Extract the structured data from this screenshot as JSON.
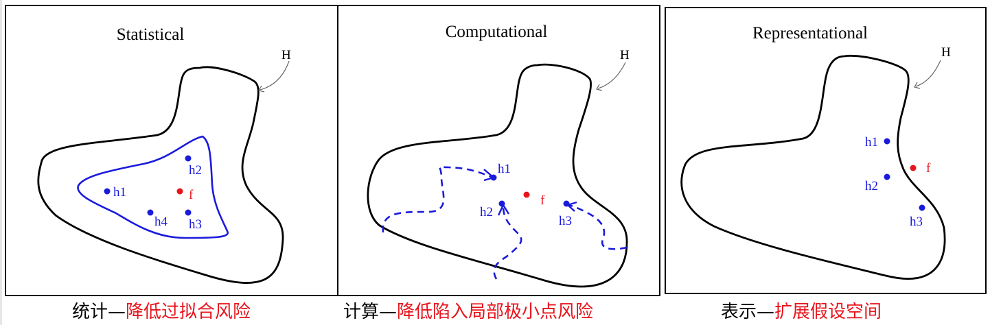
{
  "colors": {
    "hypothesis_point": "#1a1adc",
    "target_point": "#e8141c",
    "outline": "#000000",
    "arrow": "#666666"
  },
  "panels": {
    "statistical": {
      "title": "Statistical",
      "space_label": "H",
      "points": [
        {
          "label": "h1"
        },
        {
          "label": "h2"
        },
        {
          "label": "h3"
        },
        {
          "label": "h4"
        }
      ],
      "target": {
        "label": "f"
      }
    },
    "computational": {
      "title": "Computational",
      "space_label": "H",
      "points": [
        {
          "label": "h1"
        },
        {
          "label": "h2"
        },
        {
          "label": "h3"
        }
      ],
      "target": {
        "label": "f"
      }
    },
    "representational": {
      "title": "Representational",
      "space_label": "H",
      "points": [
        {
          "label": "h1"
        },
        {
          "label": "h2"
        },
        {
          "label": "h3"
        }
      ],
      "target": {
        "label": "f"
      }
    }
  },
  "captions": {
    "statistical": {
      "prefix": "统计—",
      "highlight": "降低过拟合风险"
    },
    "computational": {
      "prefix": "计算—",
      "highlight": "降低陷入局部极小点风险"
    },
    "representational": {
      "prefix": "表示—",
      "highlight": "扩展假设空间"
    }
  }
}
